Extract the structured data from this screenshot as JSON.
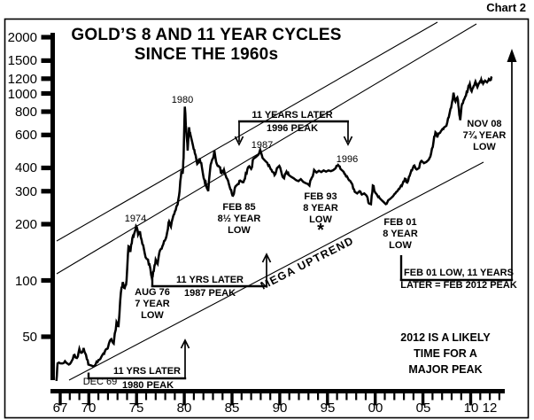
{
  "page_label": "Chart 2",
  "title": {
    "line1": "GOLD’S 8 AND 11 YEAR CYCLES",
    "line2": "SINCE THE 1960s"
  },
  "colors": {
    "ink": "#000000",
    "background": "#ffffff"
  },
  "annotations": {
    "peak_1980": "1980",
    "peak_1974": "1974",
    "peak_1987": "1987",
    "peak_1996": "1996",
    "dec69": "DEC 69",
    "bracket_1980": {
      "line1": "11 YRS LATER",
      "line2": "1980 PEAK"
    },
    "bracket_1987": {
      "line1": "11 YRS LATER",
      "line2": "1987 PEAK"
    },
    "bracket_1996": {
      "line1": "11 YEARS LATER",
      "line2": "1996 PEAK"
    },
    "aug76": {
      "line1": "AUG 76",
      "line2": "7 YEAR",
      "line3": "LOW"
    },
    "feb85": {
      "line1": "FEB 85",
      "line2": "8½ YEAR",
      "line3": "LOW"
    },
    "feb93": {
      "line1": "FEB 93",
      "line2": "8 YEAR",
      "line3": "LOW",
      "star": "*"
    },
    "feb01": {
      "line1": "FEB 01",
      "line2": "8 YEAR",
      "line3": "LOW"
    },
    "nov08": {
      "line1": "NOV 08",
      "line2": "7¾ YEAR",
      "line3": "LOW"
    },
    "mega_uptrend": "MEGA UPTREND",
    "feb01_2012": {
      "line1": "FEB 01 LOW, 11 YEARS",
      "line2": "LATER = FEB 2012 PEAK"
    },
    "likely_peak": {
      "line1": "2012 IS A LIKELY",
      "line2": "TIME FOR A",
      "line3": "MAJOR PEAK"
    }
  },
  "chart_data": {
    "type": "line",
    "title": "GOLD’S 8 AND 11 YEAR CYCLES SINCE THE 1960s",
    "y_scale": "log",
    "x_range": [
      1967,
      2013.6
    ],
    "y_range": [
      24,
      2200
    ],
    "grid": false,
    "y_ticks": [
      {
        "label": "2000",
        "value": 2000
      },
      {
        "label": "1500",
        "value": 1500
      },
      {
        "label": "1200",
        "value": 1200
      },
      {
        "label": "1000",
        "value": 1000
      },
      {
        "label": "800",
        "value": 800
      },
      {
        "label": "600",
        "value": 600
      },
      {
        "label": "400",
        "value": 400
      },
      {
        "label": "300",
        "value": 300
      },
      {
        "label": "200",
        "value": 200
      },
      {
        "label": "100",
        "value": 100
      },
      {
        "label": "50",
        "value": 50
      }
    ],
    "x_ticks": [
      {
        "label": "67",
        "year": 1967
      },
      {
        "label": "70",
        "year": 1970
      },
      {
        "label": "75",
        "year": 1975
      },
      {
        "label": "80",
        "year": 1980
      },
      {
        "label": "85",
        "year": 1985
      },
      {
        "label": "90",
        "year": 1990
      },
      {
        "label": "95",
        "year": 1995
      },
      {
        "label": "00",
        "year": 2000
      },
      {
        "label": "05",
        "year": 2005
      },
      {
        "label": "10",
        "year": 2010
      },
      {
        "label": "12",
        "year": 2012
      }
    ],
    "key_points": {
      "dec_1969_low": 35,
      "1974_peak": 195,
      "aug_1976_low": 103,
      "1980_peak": 850,
      "feb_1985_low": 284,
      "1987_peak": 500,
      "feb_1993_low": 322,
      "1996_peak": 415,
      "feb_2001_low": 256,
      "2008_peak": 1010,
      "nov_2008_low": 720,
      "end_value": 1232
    },
    "series": [
      {
        "name": "GOLD",
        "points": [
          [
            1966.6,
            29
          ],
          [
            1966.72,
            36
          ],
          [
            1967.1,
            36
          ],
          [
            1967.5,
            37
          ],
          [
            1967.9,
            35.5
          ],
          [
            1968.2,
            37
          ],
          [
            1968.5,
            40
          ],
          [
            1968.75,
            38.5
          ],
          [
            1969.0,
            43
          ],
          [
            1969.2,
            41
          ],
          [
            1969.45,
            43.5
          ],
          [
            1969.7,
            40
          ],
          [
            1969.95,
            35.5
          ],
          [
            1970.3,
            35
          ],
          [
            1970.7,
            35.5
          ],
          [
            1971.0,
            37.5
          ],
          [
            1971.3,
            39
          ],
          [
            1971.6,
            40.5
          ],
          [
            1971.9,
            43
          ],
          [
            1972.1,
            46
          ],
          [
            1972.35,
            48.5
          ],
          [
            1972.6,
            46
          ],
          [
            1972.9,
            60
          ],
          [
            1973.1,
            57
          ],
          [
            1973.35,
            86
          ],
          [
            1973.55,
            98
          ],
          [
            1973.75,
            91
          ],
          [
            1973.95,
            100
          ],
          [
            1974.15,
            152
          ],
          [
            1974.35,
            142
          ],
          [
            1974.55,
            168
          ],
          [
            1974.75,
            178
          ],
          [
            1974.95,
            195
          ],
          [
            1975.15,
            176
          ],
          [
            1975.35,
            183
          ],
          [
            1975.6,
            157
          ],
          [
            1975.85,
            140
          ],
          [
            1976.1,
            130
          ],
          [
            1976.35,
            122
          ],
          [
            1976.6,
            103
          ],
          [
            1976.8,
            112
          ],
          [
            1977.0,
            129
          ],
          [
            1977.2,
            123
          ],
          [
            1977.45,
            145
          ],
          [
            1977.7,
            152
          ],
          [
            1977.95,
            163
          ],
          [
            1978.2,
            180
          ],
          [
            1978.4,
            207
          ],
          [
            1978.6,
            194
          ],
          [
            1978.85,
            222
          ],
          [
            1979.1,
            238
          ],
          [
            1979.3,
            255
          ],
          [
            1979.5,
            300
          ],
          [
            1979.7,
            387
          ],
          [
            1979.82,
            372
          ],
          [
            1979.92,
            450
          ],
          [
            1980.05,
            850
          ],
          [
            1980.2,
            640
          ],
          [
            1980.35,
            495
          ],
          [
            1980.5,
            660
          ],
          [
            1980.65,
            600
          ],
          [
            1980.9,
            530
          ],
          [
            1981.1,
            480
          ],
          [
            1981.35,
            420
          ],
          [
            1981.6,
            450
          ],
          [
            1981.85,
            400
          ],
          [
            1982.1,
            345
          ],
          [
            1982.3,
            320
          ],
          [
            1982.5,
            300
          ],
          [
            1982.75,
            415
          ],
          [
            1982.95,
            445
          ],
          [
            1983.15,
            495
          ],
          [
            1983.4,
            420
          ],
          [
            1983.65,
            405
          ],
          [
            1983.9,
            375
          ],
          [
            1984.15,
            390
          ],
          [
            1984.4,
            355
          ],
          [
            1984.65,
            330
          ],
          [
            1984.9,
            305
          ],
          [
            1985.1,
            284
          ],
          [
            1985.35,
            318
          ],
          [
            1985.6,
            327
          ],
          [
            1985.85,
            342
          ],
          [
            1986.1,
            335
          ],
          [
            1986.35,
            350
          ],
          [
            1986.6,
            392
          ],
          [
            1986.8,
            408
          ],
          [
            1987.0,
            395
          ],
          [
            1987.25,
            448
          ],
          [
            1987.5,
            458
          ],
          [
            1987.75,
            470
          ],
          [
            1987.95,
            500
          ],
          [
            1988.2,
            452
          ],
          [
            1988.45,
            438
          ],
          [
            1988.7,
            425
          ],
          [
            1988.95,
            405
          ],
          [
            1989.2,
            382
          ],
          [
            1989.45,
            366
          ],
          [
            1989.7,
            398
          ],
          [
            1989.95,
            410
          ],
          [
            1990.2,
            372
          ],
          [
            1990.45,
            352
          ],
          [
            1990.7,
            382
          ],
          [
            1990.95,
            366
          ],
          [
            1991.2,
            358
          ],
          [
            1991.45,
            352
          ],
          [
            1991.7,
            344
          ],
          [
            1991.95,
            340
          ],
          [
            1992.2,
            348
          ],
          [
            1992.45,
            337
          ],
          [
            1992.7,
            332
          ],
          [
            1992.95,
            328
          ],
          [
            1993.1,
            322
          ],
          [
            1993.35,
            355
          ],
          [
            1993.6,
            390
          ],
          [
            1993.85,
            378
          ],
          [
            1994.1,
            386
          ],
          [
            1994.35,
            380
          ],
          [
            1994.6,
            388
          ],
          [
            1994.85,
            382
          ],
          [
            1995.1,
            388
          ],
          [
            1995.35,
            384
          ],
          [
            1995.6,
            389
          ],
          [
            1995.85,
            398
          ],
          [
            1996.1,
            415
          ],
          [
            1996.35,
            395
          ],
          [
            1996.6,
            385
          ],
          [
            1996.85,
            370
          ],
          [
            1997.1,
            355
          ],
          [
            1997.35,
            342
          ],
          [
            1997.6,
            326
          ],
          [
            1997.85,
            298
          ],
          [
            1998.1,
            292
          ],
          [
            1998.35,
            300
          ],
          [
            1998.6,
            288
          ],
          [
            1998.85,
            292
          ],
          [
            1999.1,
            284
          ],
          [
            1999.35,
            258
          ],
          [
            1999.55,
            256
          ],
          [
            1999.75,
            322
          ],
          [
            1999.95,
            298
          ],
          [
            2000.2,
            286
          ],
          [
            2000.45,
            276
          ],
          [
            2000.7,
            268
          ],
          [
            2000.9,
            262
          ],
          [
            2001.1,
            256
          ],
          [
            2001.35,
            268
          ],
          [
            2001.6,
            274
          ],
          [
            2001.85,
            282
          ],
          [
            2002.1,
            292
          ],
          [
            2002.35,
            302
          ],
          [
            2002.6,
            315
          ],
          [
            2002.85,
            328
          ],
          [
            2003.1,
            350
          ],
          [
            2003.35,
            334
          ],
          [
            2003.6,
            362
          ],
          [
            2003.85,
            388
          ],
          [
            2004.1,
            412
          ],
          [
            2004.35,
            392
          ],
          [
            2004.6,
            400
          ],
          [
            2004.85,
            436
          ],
          [
            2005.1,
            424
          ],
          [
            2005.35,
            430
          ],
          [
            2005.6,
            442
          ],
          [
            2005.85,
            478
          ],
          [
            2006.1,
            550
          ],
          [
            2006.3,
            620
          ],
          [
            2006.5,
            582
          ],
          [
            2006.7,
            612
          ],
          [
            2006.95,
            636
          ],
          [
            2007.2,
            658
          ],
          [
            2007.45,
            672
          ],
          [
            2007.7,
            745
          ],
          [
            2007.95,
            838
          ],
          [
            2008.2,
            1010
          ],
          [
            2008.4,
            905
          ],
          [
            2008.6,
            952
          ],
          [
            2008.75,
            830
          ],
          [
            2008.9,
            720
          ],
          [
            2009.1,
            880
          ],
          [
            2009.3,
            928
          ],
          [
            2009.5,
            972
          ],
          [
            2009.7,
            1048
          ],
          [
            2009.9,
            1125
          ],
          [
            2010.1,
            1028
          ],
          [
            2010.3,
            1095
          ],
          [
            2010.5,
            1158
          ],
          [
            2010.7,
            1082
          ],
          [
            2010.9,
            1135
          ],
          [
            2011.1,
            1186
          ],
          [
            2011.3,
            1130
          ],
          [
            2011.5,
            1172
          ],
          [
            2011.7,
            1148
          ],
          [
            2011.9,
            1195
          ],
          [
            2012.05,
            1178
          ],
          [
            2012.2,
            1232
          ]
        ]
      }
    ],
    "trend_channel": "three parallel uptrend lines (MEGA UPTREND)"
  }
}
